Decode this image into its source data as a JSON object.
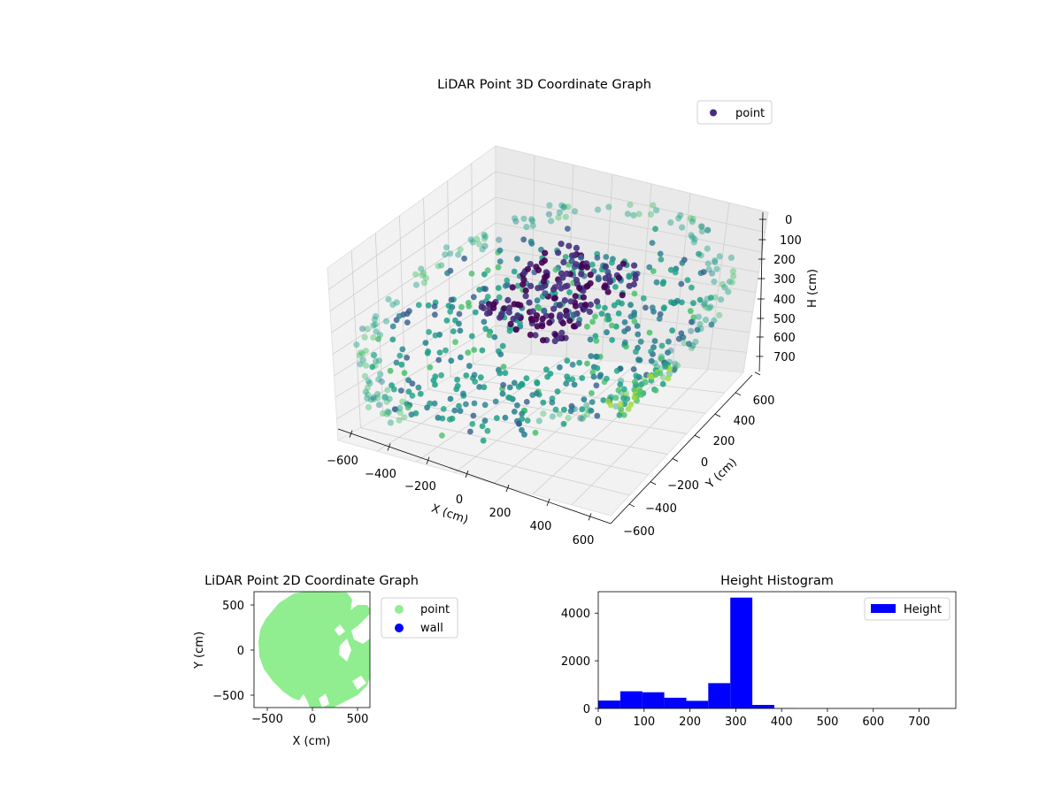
{
  "chart_data": [
    {
      "type": "scatter",
      "projection": "3d",
      "title": "LiDAR Point 3D Coordinate Graph",
      "xlabel": "X (cm)",
      "ylabel": "Y (cm)",
      "zlabel": "H (cm)",
      "xticks": [
        "−600",
        "−400",
        "−200",
        "0",
        "200",
        "400",
        "600"
      ],
      "yticks": [
        "−600",
        "−400",
        "−200",
        "0",
        "200",
        "400",
        "600"
      ],
      "zticks": [
        "0",
        "100",
        "200",
        "300",
        "400",
        "500",
        "600",
        "700"
      ],
      "xlim": [
        -650,
        650
      ],
      "ylim": [
        -650,
        650
      ],
      "zlim": [
        0,
        770
      ],
      "z_inverted": true,
      "legend": [
        "point"
      ],
      "legend_position": "top-right",
      "colormap": "viridis",
      "grid": true
    },
    {
      "type": "scatter",
      "title": "LiDAR Point 2D Coordinate Graph",
      "xlabel": "X (cm)",
      "ylabel": "Y (cm)",
      "xticks": [
        "−500",
        "0",
        "500"
      ],
      "yticks": [
        "500",
        "0",
        "−500"
      ],
      "xlim": [
        -650,
        650
      ],
      "ylim": [
        -650,
        650
      ],
      "series": [
        {
          "name": "point",
          "color": "#90ee90"
        },
        {
          "name": "wall",
          "color": "#0000ff"
        }
      ],
      "legend_position": "outside-right"
    },
    {
      "type": "bar",
      "subtype": "histogram",
      "title": "Height Histogram",
      "xticks": [
        "0",
        "100",
        "200",
        "300",
        "400",
        "500",
        "600",
        "700"
      ],
      "yticks": [
        "0",
        "2000",
        "4000"
      ],
      "xlim": [
        0,
        780
      ],
      "ylim": [
        0,
        4900
      ],
      "bins": [
        {
          "x0": 0,
          "x1": 48,
          "count": 330
        },
        {
          "x0": 48,
          "x1": 96,
          "count": 720
        },
        {
          "x0": 96,
          "x1": 144,
          "count": 680
        },
        {
          "x0": 144,
          "x1": 192,
          "count": 450
        },
        {
          "x0": 192,
          "x1": 240,
          "count": 320
        },
        {
          "x0": 240,
          "x1": 288,
          "count": 1060
        },
        {
          "x0": 288,
          "x1": 336,
          "count": 4650
        },
        {
          "x0": 336,
          "x1": 384,
          "count": 150
        },
        {
          "x0": 384,
          "x1": 432,
          "count": 10
        },
        {
          "x0": 432,
          "x1": 480,
          "count": 5
        },
        {
          "x0": 480,
          "x1": 528,
          "count": 5
        },
        {
          "x0": 528,
          "x1": 576,
          "count": 5
        },
        {
          "x0": 576,
          "x1": 624,
          "count": 5
        },
        {
          "x0": 624,
          "x1": 672,
          "count": 5
        },
        {
          "x0": 672,
          "x1": 720,
          "count": 5
        },
        {
          "x0": 720,
          "x1": 768,
          "count": 5
        }
      ],
      "series": [
        {
          "name": "Height",
          "color": "#0000ff"
        }
      ],
      "legend_position": "top-right"
    }
  ]
}
